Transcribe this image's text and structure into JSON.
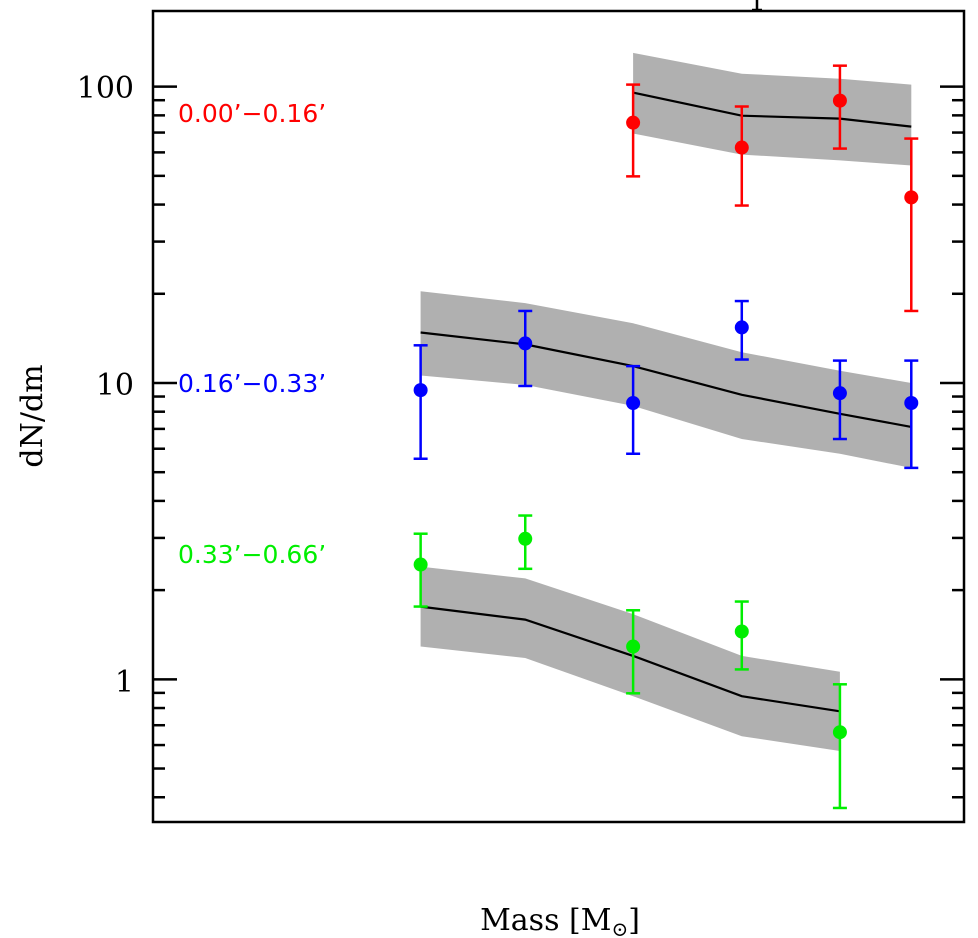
{
  "chart_data": {
    "type": "scatter",
    "title": "",
    "xlabel": "Mass [M⊙]",
    "xlabel_main": "Mass [M",
    "xlabel_sub": "⊙",
    "xlabel_close": "]",
    "ylabel": "dN/dm",
    "yscale": "log",
    "ylim": [
      0.33,
      180
    ],
    "xlim": [
      0,
      1
    ],
    "x_note": "x tick labels not shown; x given as fraction of axis range",
    "yticks": [
      {
        "value": 1,
        "label": "1"
      },
      {
        "value": 10,
        "label": "10"
      },
      {
        "value": 100,
        "label": "100"
      }
    ],
    "grid": false,
    "legend": "inline labels on left",
    "series": [
      {
        "name": "0.00’−0.16’",
        "color": "#ff0000",
        "points": [
          {
            "x": 0.592,
            "y": 75.6,
            "ylo": 49.8,
            "yhi": 101.6
          },
          {
            "x": 0.726,
            "y": 62.3,
            "ylo": 39.7,
            "yhi": 85.7
          },
          {
            "x": 0.847,
            "y": 89.7,
            "ylo": 61.8,
            "yhi": 117.7
          },
          {
            "x": 0.935,
            "y": 42.3,
            "ylo": 17.5,
            "yhi": 66.8
          }
        ],
        "model": {
          "x": [
            0.592,
            0.726,
            0.847,
            0.935
          ],
          "y": [
            95.5,
            79.8,
            78.0,
            73.3
          ],
          "lo": [
            69.5,
            59.0,
            56.4,
            54.2
          ],
          "hi": [
            130.0,
            110.6,
            106.4,
            101.6
          ]
        }
      },
      {
        "name": "0.16’−0.33’",
        "color": "#0000ff",
        "points": [
          {
            "x": 0.33,
            "y": 9.46,
            "ylo": 5.55,
            "yhi": 13.4
          },
          {
            "x": 0.459,
            "y": 13.6,
            "ylo": 9.77,
            "yhi": 17.5
          },
          {
            "x": 0.592,
            "y": 8.56,
            "ylo": 5.77,
            "yhi": 11.4
          },
          {
            "x": 0.726,
            "y": 15.4,
            "ylo": 12.0,
            "yhi": 18.9
          },
          {
            "x": 0.847,
            "y": 9.24,
            "ylo": 6.47,
            "yhi": 11.9
          },
          {
            "x": 0.935,
            "y": 8.56,
            "ylo": 5.17,
            "yhi": 11.9
          }
        ],
        "model": {
          "x": [
            0.33,
            0.459,
            0.592,
            0.726,
            0.847,
            0.935
          ],
          "y": [
            14.8,
            13.5,
            11.4,
            9.12,
            7.87,
            7.11
          ],
          "lo": [
            10.6,
            9.85,
            8.37,
            6.47,
            5.77,
            5.17
          ],
          "hi": [
            20.4,
            18.6,
            15.9,
            12.7,
            11.0,
            10.0
          ]
        }
      },
      {
        "name": "0.33’−0.66’",
        "color": "#00ee00",
        "points": [
          {
            "x": 0.33,
            "y": 2.44,
            "ylo": 1.76,
            "yhi": 3.1
          },
          {
            "x": 0.459,
            "y": 2.98,
            "ylo": 2.36,
            "yhi": 3.57
          },
          {
            "x": 0.592,
            "y": 1.29,
            "ylo": 0.897,
            "yhi": 1.71
          },
          {
            "x": 0.726,
            "y": 1.45,
            "ylo": 1.08,
            "yhi": 1.83
          },
          {
            "x": 0.847,
            "y": 0.663,
            "ylo": 0.368,
            "yhi": 0.962
          }
        ],
        "model": {
          "x": [
            0.33,
            0.459,
            0.592,
            0.726,
            0.847
          ],
          "y": [
            1.76,
            1.59,
            1.2,
            0.877,
            0.78
          ],
          "lo": [
            1.29,
            1.18,
            0.877,
            0.643,
            0.573
          ],
          "hi": [
            2.4,
            2.19,
            1.66,
            1.2,
            1.06
          ]
        }
      }
    ],
    "band_color": "#b0b0b0",
    "model_line_color": "#000000"
  }
}
